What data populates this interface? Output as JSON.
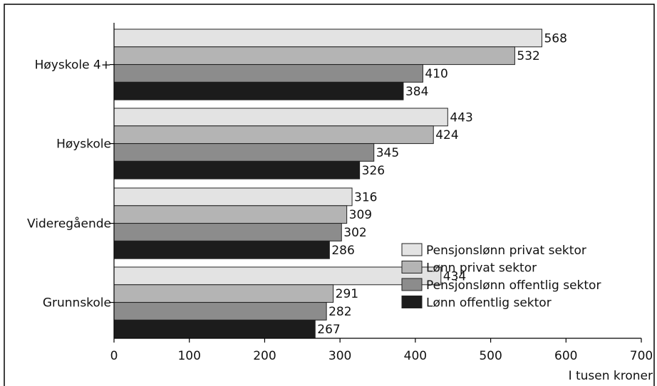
{
  "chart_data": {
    "type": "bar",
    "orientation": "horizontal",
    "categories": [
      "Høyskole 4+",
      "Høyskole",
      "Videregående",
      "Grunnskole"
    ],
    "series": [
      {
        "name": "Pensjonslønn privat sektor",
        "values": [
          568,
          443,
          316,
          434
        ],
        "color": "#e3e3e3"
      },
      {
        "name": "Lønn privat sektor",
        "values": [
          532,
          424,
          309,
          291
        ],
        "color": "#b4b4b4"
      },
      {
        "name": "Pensjonslønn offentlig sektor",
        "values": [
          410,
          345,
          302,
          282
        ],
        "color": "#8c8c8c"
      },
      {
        "name": "Lønn offentlig sektor",
        "values": [
          384,
          326,
          286,
          267
        ],
        "color": "#1c1c1c"
      }
    ],
    "xlim": [
      0,
      700
    ],
    "xticks": [
      "0",
      "100",
      "200",
      "300",
      "400",
      "500",
      "600",
      "700"
    ],
    "xlabel": "I tusen kroner",
    "legend_position": "bottom-right",
    "grid": false
  }
}
